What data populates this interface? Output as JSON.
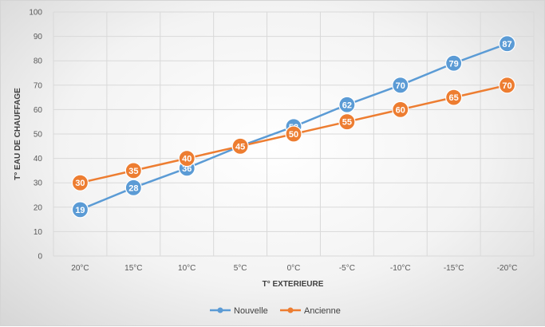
{
  "chart_data": {
    "type": "line",
    "title": "",
    "xlabel": "T° EXTERIEURE",
    "ylabel": "T° EAU DE CHAUFFAGE",
    "categories": [
      "20°C",
      "15°C",
      "10°C",
      "5°C",
      "0°C",
      "-5°C",
      "-10°C",
      "-15°C",
      "-20°C"
    ],
    "ylim": [
      0,
      100
    ],
    "yticks": [
      0,
      10,
      20,
      30,
      40,
      50,
      60,
      70,
      80,
      90,
      100
    ],
    "grid": true,
    "legend_position": "bottom",
    "series": [
      {
        "name": "Nouvelle",
        "color": "#5B9BD5",
        "values": [
          19,
          28,
          36,
          45,
          53,
          62,
          70,
          79,
          87
        ]
      },
      {
        "name": "Ancienne",
        "color": "#ED7D31",
        "values": [
          30,
          35,
          40,
          45,
          50,
          55,
          60,
          65,
          70
        ]
      }
    ]
  }
}
